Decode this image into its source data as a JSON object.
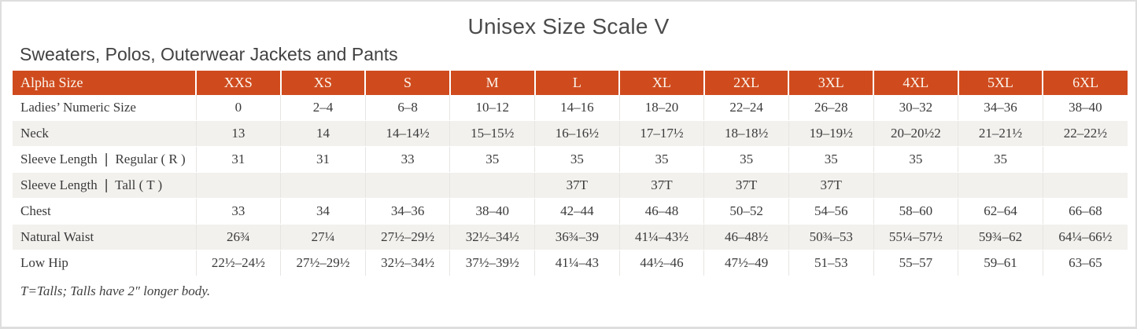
{
  "page": {
    "title": "Unisex Size Scale V",
    "subtitle": "Sweaters, Polos, Outerwear Jackets and Pants",
    "footnote": "T=Talls; Talls have 2″ longer body."
  },
  "colors": {
    "header_bg": "#CF4B1E",
    "header_text": "#FCF5EC",
    "stripe_bg": "#F2F1EE",
    "body_text": "#3A3A3A",
    "title_text": "#4C4C4C",
    "grid_line": "#E6E5E2",
    "frame_border": "#DEDEDE"
  },
  "table": {
    "header": [
      "Alpha Size",
      "XXS",
      "XS",
      "S",
      "M",
      "L",
      "XL",
      "2XL",
      "3XL",
      "4XL",
      "5XL",
      "6XL"
    ],
    "rows": [
      {
        "label": "Ladies’ Numeric Size",
        "values": [
          "0",
          "2–4",
          "6–8",
          "10–12",
          "14–16",
          "18–20",
          "22–24",
          "26–28",
          "30–32",
          "34–36",
          "38–40"
        ]
      },
      {
        "label": "Neck",
        "values": [
          "13",
          "14",
          "14–14½",
          "15–15½",
          "16–16½",
          "17–17½",
          "18–18½",
          "19–19½",
          "20–20½2",
          "21–21½",
          "22–22½"
        ]
      },
      {
        "label": "Sleeve Length ❘ Regular ( R )",
        "values": [
          "31",
          "31",
          "33",
          "35",
          "35",
          "35",
          "35",
          "35",
          "35",
          "35",
          ""
        ]
      },
      {
        "label": "Sleeve Length ❘ Tall ( T )",
        "values": [
          "",
          "",
          "",
          "",
          "37T",
          "37T",
          "37T",
          "37T",
          "",
          "",
          ""
        ]
      },
      {
        "label": "Chest",
        "values": [
          "33",
          "34",
          "34–36",
          "38–40",
          "42–44",
          "46–48",
          "50–52",
          "54–56",
          "58–60",
          "62–64",
          "66–68"
        ]
      },
      {
        "label": "Natural Waist",
        "values": [
          "26¾",
          "27¼",
          "27½–29½",
          "32½–34½",
          "36¾–39",
          "41¼–43½",
          "46–48½",
          "50¾–53",
          "55¼–57½",
          "59¾–62",
          "64¼–66½"
        ]
      },
      {
        "label": "Low Hip",
        "values": [
          "22½–24½",
          "27½–29½",
          "32½–34½",
          "37½–39½",
          "41¼–43",
          "44½–46",
          "47½–49",
          "51–53",
          "55–57",
          "59–61",
          "63–65"
        ]
      }
    ],
    "striped_row_indexes": [
      1,
      3,
      5
    ]
  }
}
